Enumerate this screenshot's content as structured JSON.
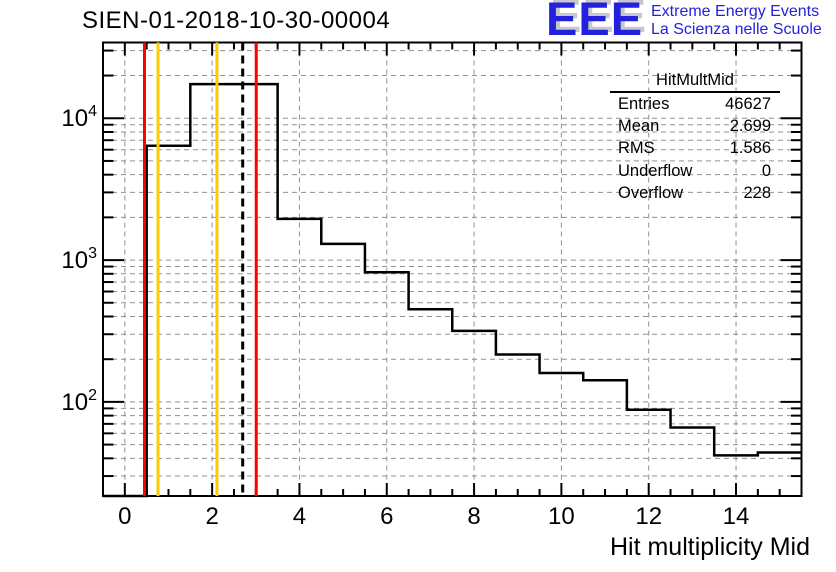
{
  "title": "SIEN-01-2018-10-30-00004",
  "logo": {
    "acronym": "EEE",
    "line1": "Extreme Energy Events",
    "line2": "La Scienza nelle Scuole",
    "color": "#2222dd",
    "shadow_color": "#c8c8c8"
  },
  "stats_box": {
    "title": "HitMultMid",
    "rows": [
      {
        "label": "Entries",
        "value": "46627"
      },
      {
        "label": "Mean",
        "value": "2.699"
      },
      {
        "label": "RMS",
        "value": "1.586"
      },
      {
        "label": "Underflow",
        "value": "0"
      },
      {
        "label": "Overflow",
        "value": "228"
      }
    ]
  },
  "chart_data": {
    "type": "bar",
    "title": "SIEN-01-2018-10-30-00004",
    "xlabel": "Hit multiplicity Mid",
    "ylabel": "",
    "y_scale": "log",
    "grid": true,
    "x_range": [
      -0.5,
      15.5
    ],
    "y_range": [
      21.7,
      34200
    ],
    "bins": {
      "start": -0.5,
      "width": 1,
      "centers": [
        0,
        1,
        2,
        3,
        4,
        5,
        6,
        7,
        8,
        9,
        10,
        11,
        12,
        13,
        14,
        15
      ],
      "counts": [
        0,
        6400,
        17400,
        17400,
        1950,
        1300,
        820,
        450,
        317,
        216,
        160,
        142,
        88,
        66,
        42,
        44
      ]
    },
    "x_major_ticks": [
      0,
      2,
      4,
      6,
      8,
      10,
      12,
      14
    ],
    "x_minor_step": 0.5,
    "y_label_exponents": [
      2,
      3,
      4
    ],
    "line_color": "#000000",
    "grid_color": "#909090",
    "marker_lines": [
      {
        "x": 0.45,
        "color": "#ff0000",
        "style": "solid",
        "name": "red-marker-low"
      },
      {
        "x": 0.76,
        "color": "#ffcc00",
        "style": "solid",
        "name": "yellow-marker-low"
      },
      {
        "x": 2.11,
        "color": "#ffcc00",
        "style": "solid",
        "name": "yellow-marker-high"
      },
      {
        "x": 2.7,
        "color": "#000000",
        "style": "dashed",
        "name": "mean-dashed-line"
      },
      {
        "x": 3.01,
        "color": "#ff0000",
        "style": "solid",
        "name": "red-marker-high"
      }
    ]
  }
}
